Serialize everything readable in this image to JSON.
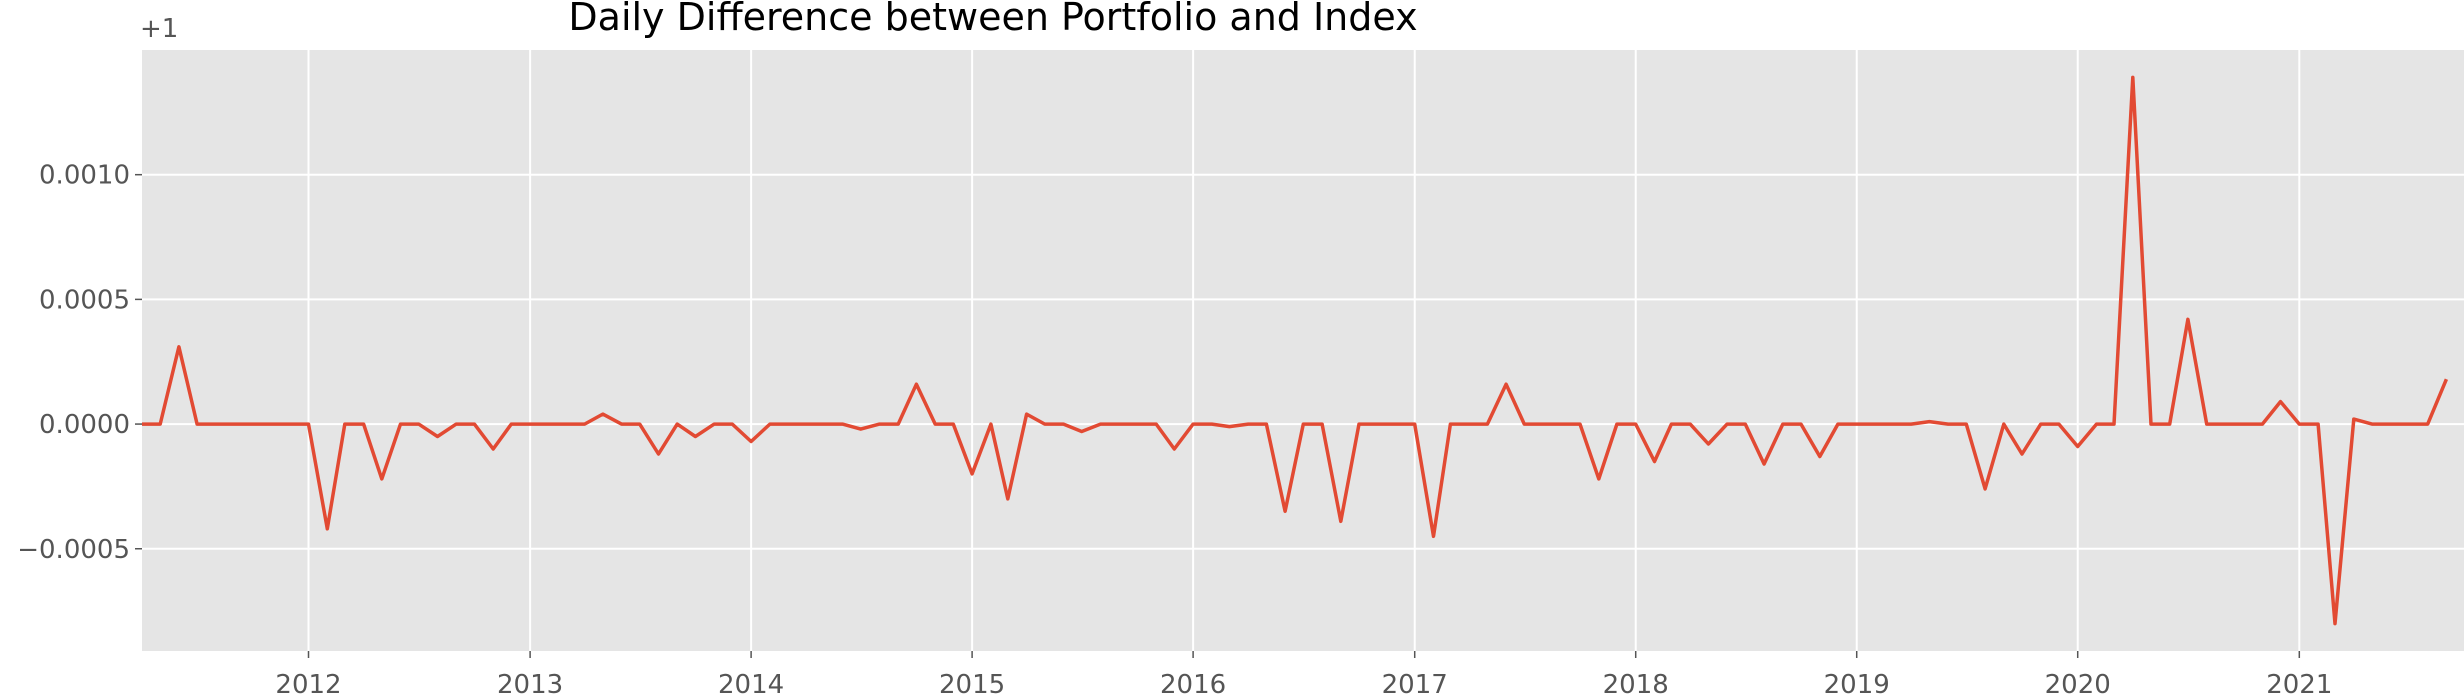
{
  "chart_data": {
    "type": "line",
    "title": "Daily Difference between Portfolio and Index",
    "xlabel": "",
    "ylabel": "",
    "y_offset_label": "+1",
    "x_ticks": [
      "2012",
      "2013",
      "2014",
      "2015",
      "2016",
      "2017",
      "2018",
      "2019",
      "2020",
      "2021"
    ],
    "y_ticks": [
      "0.0010",
      "0.0005",
      "0.0000",
      "−0.0005"
    ],
    "y_tick_values": [
      0.001,
      0.0005,
      0.0,
      -0.0005
    ],
    "xlim": [
      "2011-04-01",
      "2021-09-30"
    ],
    "ylim": [
      -0.00091,
      0.0015
    ],
    "grid": true,
    "series": [
      {
        "name": "",
        "color": "#E24A33",
        "points": [
          [
            "2011-04-01",
            0.0
          ],
          [
            "2011-05-01",
            0.0
          ],
          [
            "2011-06-01",
            0.00031
          ],
          [
            "2011-07-01",
            0.0
          ],
          [
            "2011-08-01",
            0.0
          ],
          [
            "2011-09-01",
            0.0
          ],
          [
            "2011-10-01",
            0.0
          ],
          [
            "2011-11-01",
            0.0
          ],
          [
            "2011-12-01",
            0.0
          ],
          [
            "2012-01-01",
            0.0
          ],
          [
            "2012-02-01",
            -0.00042
          ],
          [
            "2012-03-01",
            0.0
          ],
          [
            "2012-04-01",
            0.0
          ],
          [
            "2012-05-01",
            -0.00022
          ],
          [
            "2012-06-01",
            0.0
          ],
          [
            "2012-07-01",
            0.0
          ],
          [
            "2012-08-01",
            -5e-05
          ],
          [
            "2012-09-01",
            0.0
          ],
          [
            "2012-10-01",
            0.0
          ],
          [
            "2012-11-01",
            -0.0001
          ],
          [
            "2012-12-01",
            0.0
          ],
          [
            "2013-01-01",
            0.0
          ],
          [
            "2013-02-01",
            0.0
          ],
          [
            "2013-03-01",
            0.0
          ],
          [
            "2013-04-01",
            0.0
          ],
          [
            "2013-05-01",
            4e-05
          ],
          [
            "2013-06-01",
            0.0
          ],
          [
            "2013-07-01",
            0.0
          ],
          [
            "2013-08-01",
            -0.00012
          ],
          [
            "2013-09-01",
            0.0
          ],
          [
            "2013-10-01",
            -5e-05
          ],
          [
            "2013-11-01",
            0.0
          ],
          [
            "2013-12-01",
            0.0
          ],
          [
            "2014-01-01",
            -7e-05
          ],
          [
            "2014-02-01",
            0.0
          ],
          [
            "2014-03-01",
            0.0
          ],
          [
            "2014-04-01",
            0.0
          ],
          [
            "2014-05-01",
            0.0
          ],
          [
            "2014-06-01",
            0.0
          ],
          [
            "2014-07-01",
            -2e-05
          ],
          [
            "2014-08-01",
            0.0
          ],
          [
            "2014-09-01",
            0.0
          ],
          [
            "2014-10-01",
            0.00016
          ],
          [
            "2014-11-01",
            0.0
          ],
          [
            "2014-12-01",
            0.0
          ],
          [
            "2015-01-01",
            -0.0002
          ],
          [
            "2015-02-01",
            0.0
          ],
          [
            "2015-03-01",
            -0.0003
          ],
          [
            "2015-04-01",
            4e-05
          ],
          [
            "2015-05-01",
            0.0
          ],
          [
            "2015-06-01",
            0.0
          ],
          [
            "2015-07-01",
            -3e-05
          ],
          [
            "2015-08-01",
            0.0
          ],
          [
            "2015-09-01",
            0.0
          ],
          [
            "2015-10-01",
            0.0
          ],
          [
            "2015-11-01",
            0.0
          ],
          [
            "2015-12-01",
            -0.0001
          ],
          [
            "2016-01-01",
            0.0
          ],
          [
            "2016-02-01",
            0.0
          ],
          [
            "2016-03-01",
            -1e-05
          ],
          [
            "2016-04-01",
            0.0
          ],
          [
            "2016-05-01",
            0.0
          ],
          [
            "2016-06-01",
            -0.00035
          ],
          [
            "2016-07-01",
            0.0
          ],
          [
            "2016-08-01",
            0.0
          ],
          [
            "2016-09-01",
            -0.00039
          ],
          [
            "2016-10-01",
            0.0
          ],
          [
            "2016-11-01",
            0.0
          ],
          [
            "2016-12-01",
            0.0
          ],
          [
            "2017-01-01",
            0.0
          ],
          [
            "2017-02-01",
            -0.00045
          ],
          [
            "2017-03-01",
            0.0
          ],
          [
            "2017-04-01",
            0.0
          ],
          [
            "2017-05-01",
            0.0
          ],
          [
            "2017-06-01",
            0.00016
          ],
          [
            "2017-07-01",
            0.0
          ],
          [
            "2017-08-01",
            0.0
          ],
          [
            "2017-09-01",
            0.0
          ],
          [
            "2017-10-01",
            0.0
          ],
          [
            "2017-11-01",
            -0.00022
          ],
          [
            "2017-12-01",
            0.0
          ],
          [
            "2018-01-01",
            0.0
          ],
          [
            "2018-02-01",
            -0.00015
          ],
          [
            "2018-03-01",
            0.0
          ],
          [
            "2018-04-01",
            0.0
          ],
          [
            "2018-05-01",
            -8e-05
          ],
          [
            "2018-06-01",
            0.0
          ],
          [
            "2018-07-01",
            0.0
          ],
          [
            "2018-08-01",
            -0.00016
          ],
          [
            "2018-09-01",
            0.0
          ],
          [
            "2018-10-01",
            0.0
          ],
          [
            "2018-11-01",
            -0.00013
          ],
          [
            "2018-12-01",
            0.0
          ],
          [
            "2019-01-01",
            0.0
          ],
          [
            "2019-02-01",
            0.0
          ],
          [
            "2019-03-01",
            0.0
          ],
          [
            "2019-04-01",
            0.0
          ],
          [
            "2019-05-01",
            1e-05
          ],
          [
            "2019-06-01",
            0.0
          ],
          [
            "2019-07-01",
            0.0
          ],
          [
            "2019-08-01",
            -0.00026
          ],
          [
            "2019-09-01",
            0.0
          ],
          [
            "2019-10-01",
            -0.00012
          ],
          [
            "2019-11-01",
            0.0
          ],
          [
            "2019-12-01",
            0.0
          ],
          [
            "2020-01-01",
            -9e-05
          ],
          [
            "2020-02-01",
            0.0
          ],
          [
            "2020-03-01",
            0.0
          ],
          [
            "2020-04-01",
            0.00139
          ],
          [
            "2020-05-01",
            0.0
          ],
          [
            "2020-06-01",
            0.0
          ],
          [
            "2020-07-01",
            0.00042
          ],
          [
            "2020-08-01",
            0.0
          ],
          [
            "2020-09-01",
            0.0
          ],
          [
            "2020-10-01",
            0.0
          ],
          [
            "2020-11-01",
            0.0
          ],
          [
            "2020-12-01",
            9e-05
          ],
          [
            "2021-01-01",
            0.0
          ],
          [
            "2021-02-01",
            0.0
          ],
          [
            "2021-03-01",
            -0.0008
          ],
          [
            "2021-04-01",
            2e-05
          ],
          [
            "2021-05-01",
            0.0
          ],
          [
            "2021-06-01",
            0.0
          ],
          [
            "2021-07-01",
            0.0
          ],
          [
            "2021-08-01",
            0.0
          ],
          [
            "2021-09-01",
            0.00018
          ]
        ]
      }
    ]
  }
}
